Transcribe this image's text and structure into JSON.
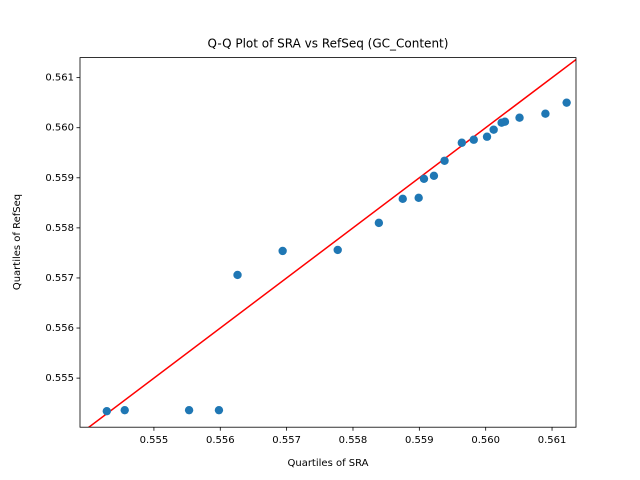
{
  "chart_data": {
    "type": "scatter",
    "title": "Q-Q Plot of SRA vs RefSeq (GC_Content)",
    "x_label": "Quartiles of SRA",
    "y_label": "Quartiles of RefSeq",
    "color": "#1f77b4",
    "reference_line_color": "red",
    "x": [
      0.55429,
      0.55456,
      0.55553,
      0.55598,
      0.55626,
      0.55694,
      0.55777,
      0.55839,
      0.55875,
      0.55899,
      0.55907,
      0.55922,
      0.55938,
      0.55964,
      0.55982,
      0.56002,
      0.56012,
      0.56024,
      0.56029,
      0.56051,
      0.5609,
      0.56122
    ],
    "values": [
      0.55434,
      0.55436,
      0.55436,
      0.55436,
      0.55706,
      0.55754,
      0.55756,
      0.5581,
      0.55858,
      0.5586,
      0.55898,
      0.55904,
      0.55934,
      0.5597,
      0.55976,
      0.55982,
      0.55996,
      0.5601,
      0.56012,
      0.5602,
      0.56028,
      0.5605
    ],
    "xlim": [
      0.553886,
      0.561361
    ],
    "ylim": [
      0.55402,
      0.5614
    ],
    "xticks": [
      0.555,
      0.556,
      0.557,
      0.558,
      0.559,
      {
        "value": 0.56,
        "label": "0.560"
      },
      0.561
    ],
    "yticks": [
      0.555,
      0.556,
      0.557,
      0.558,
      0.559,
      {
        "value": 0.56,
        "label": "0.560"
      },
      0.561
    ]
  }
}
